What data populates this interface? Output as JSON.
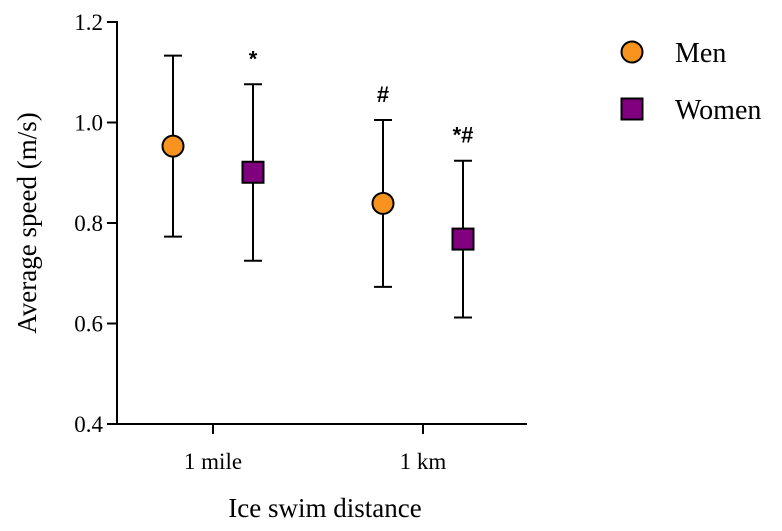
{
  "chart_data": {
    "type": "scatter",
    "title": "",
    "xlabel": "Ice swim distance",
    "ylabel": "Average speed (m/s)",
    "categories": [
      "1 mile",
      "1 km"
    ],
    "ylim": [
      0.4,
      1.2
    ],
    "yticks": [
      "0.4",
      "0.6",
      "0.8",
      "1.0",
      "1.2"
    ],
    "legend_position": "top-right",
    "series": [
      {
        "name": "Men",
        "marker": "circle",
        "color": "#F7931E",
        "values": [
          0.953,
          0.839
        ],
        "err_low": [
          0.773,
          0.673
        ],
        "err_high": [
          1.133,
          1.005
        ],
        "annotations": [
          "",
          "#"
        ]
      },
      {
        "name": "Women",
        "marker": "square",
        "color": "#800080",
        "values": [
          0.901,
          0.768
        ],
        "err_low": [
          0.725,
          0.612
        ],
        "err_high": [
          1.076,
          0.924
        ],
        "annotations": [
          "*",
          "*#"
        ]
      }
    ]
  }
}
